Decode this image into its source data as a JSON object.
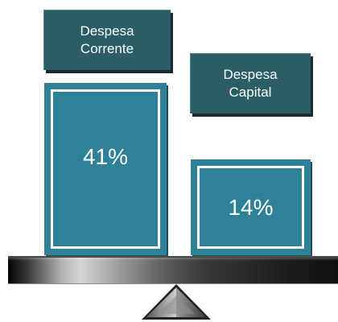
{
  "labels": {
    "left_line1": "Despesa",
    "left_line2": "Corrente",
    "right_line1": "Despesa",
    "right_line2": "Capital"
  },
  "blocks": {
    "left_value": "41%",
    "right_value": "14%"
  },
  "colors": {
    "label_bg": "#2a5d66",
    "block_bg": "#2e8196",
    "text": "#ffffff"
  }
}
